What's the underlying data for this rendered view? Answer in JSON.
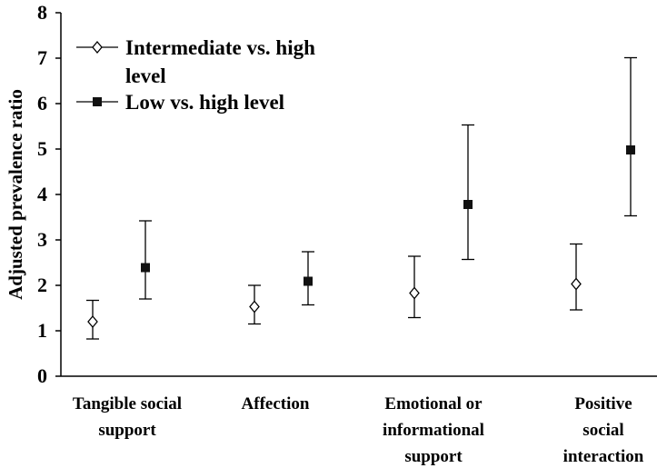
{
  "chart_data": {
    "type": "scatter",
    "ylabel": "Adjusted prevalence ratio",
    "ylim": [
      0,
      8
    ],
    "yticks": [
      "0",
      "1",
      "2",
      "3",
      "4",
      "5",
      "6",
      "7",
      "8"
    ],
    "categories": [
      [
        "Tangible social",
        "support"
      ],
      [
        "Affection"
      ],
      [
        "Emotional or",
        "informational",
        "support"
      ],
      [
        "Positive",
        "social",
        "interaction"
      ]
    ],
    "legend_position": "top-left",
    "series": [
      {
        "name_lines": [
          "Intermediate vs. high",
          "level"
        ],
        "marker": "open-diamond",
        "values": [
          1.2,
          1.53,
          1.83,
          2.03
        ],
        "lower": [
          0.82,
          1.15,
          1.29,
          1.46
        ],
        "upper": [
          1.67,
          2.0,
          2.64,
          2.91
        ]
      },
      {
        "name_lines": [
          "Low vs. high level"
        ],
        "marker": "filled-square",
        "values": [
          2.39,
          2.09,
          3.78,
          4.98
        ],
        "lower": [
          1.7,
          1.57,
          2.57,
          3.53
        ],
        "upper": [
          3.42,
          2.74,
          5.53,
          7.01
        ]
      }
    ]
  }
}
